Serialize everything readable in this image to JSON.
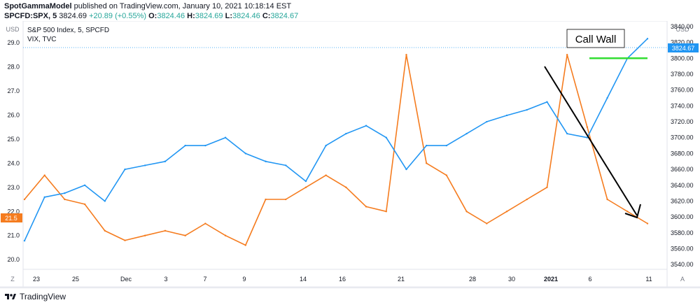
{
  "header": {
    "publisher": "SpotGammaModel",
    "published_text": "published on TradingView.com, January 10, 2021 10:18:14 EST",
    "symbol": "SPCFD:SPX, 5",
    "last": "3824.69",
    "change": "+20.89 (+0.55%)",
    "o_label": "O:",
    "o_value": "3824.46",
    "h_label": "H:",
    "h_value": "3824.69",
    "l_label": "L:",
    "l_value": "3824.46",
    "c_label": "C:",
    "c_value": "3824.67"
  },
  "legend": {
    "main": "S&P 500 Index, 5, SPCFD",
    "secondary": "VIX, TVC"
  },
  "left_axis": {
    "currency": "USD",
    "ticks": [
      "29.0",
      "28.0",
      "27.0",
      "26.0",
      "25.0",
      "24.0",
      "23.0",
      "22.0",
      "21.0",
      "20.0"
    ],
    "current_label": "21.5"
  },
  "right_axis": {
    "currency": "USD",
    "ticks": [
      "3840.00",
      "3820.00",
      "3800.00",
      "3780.00",
      "3760.00",
      "3740.00",
      "3720.00",
      "3700.00",
      "3680.00",
      "3660.00",
      "3640.00",
      "3620.00",
      "3600.00",
      "3580.00",
      "3560.00",
      "3540.00"
    ],
    "current_label": "3824.67"
  },
  "x_axis": {
    "ticks": [
      "23",
      "25",
      "Dec",
      "3",
      "7",
      "9",
      "14",
      "16",
      "21",
      "28",
      "30",
      "2021",
      "6",
      "11"
    ]
  },
  "annotation": {
    "text": "Call Wall"
  },
  "toolbar": {
    "zoom": "Z",
    "auto": "A"
  },
  "footer": {
    "brand": "TradingView"
  },
  "colors": {
    "spx": "#2196f3",
    "vix": "#f57c1f",
    "call_wall": "#33dd33",
    "arrow": "#000000"
  },
  "chart_data": {
    "type": "line",
    "x": [
      "Nov 23",
      "Nov 24",
      "Nov 25",
      "Nov 27",
      "Nov 30",
      "Dec 1",
      "Dec 2",
      "Dec 3",
      "Dec 4",
      "Dec 7",
      "Dec 8",
      "Dec 9",
      "Dec 10",
      "Dec 11",
      "Dec 14",
      "Dec 15",
      "Dec 16",
      "Dec 17",
      "Dec 18",
      "Dec 21",
      "Dec 22",
      "Dec 23",
      "Dec 24",
      "Dec 28",
      "Dec 29",
      "Dec 30",
      "Dec 31",
      "Jan 4",
      "Jan 5",
      "Jan 6",
      "Jan 7",
      "Jan 8"
    ],
    "series": [
      {
        "name": "S&P 500 Index, 5, SPCFD",
        "axis": "right",
        "values": [
          3570,
          3625,
          3630,
          3640,
          3620,
          3660,
          3665,
          3670,
          3690,
          3690,
          3700,
          3680,
          3670,
          3665,
          3645,
          3690,
          3705,
          3715,
          3700,
          3660,
          3690,
          3690,
          3705,
          3720,
          3728,
          3735,
          3745,
          3705,
          3700,
          3750,
          3800,
          3824.67
        ]
      },
      {
        "name": "VIX, TVC",
        "axis": "left",
        "values": [
          22.5,
          23.5,
          22.5,
          22.3,
          21.2,
          20.8,
          21.0,
          21.2,
          21.0,
          21.5,
          21.0,
          20.6,
          22.5,
          22.5,
          23.0,
          23.5,
          23.0,
          22.2,
          22.0,
          28.5,
          24.0,
          23.5,
          22.0,
          21.5,
          22.0,
          22.5,
          23.0,
          28.5,
          25.5,
          22.5,
          22.0,
          21.5
        ]
      }
    ],
    "y_left_range": [
      19.6,
      29.9
    ],
    "y_right_range": [
      3534,
      3847
    ],
    "annotations": [
      {
        "text": "Call Wall",
        "type": "horizontal line",
        "series": "S&P 500 Index, 5, SPCFD",
        "value": 3800,
        "color": "#33dd33"
      }
    ]
  }
}
